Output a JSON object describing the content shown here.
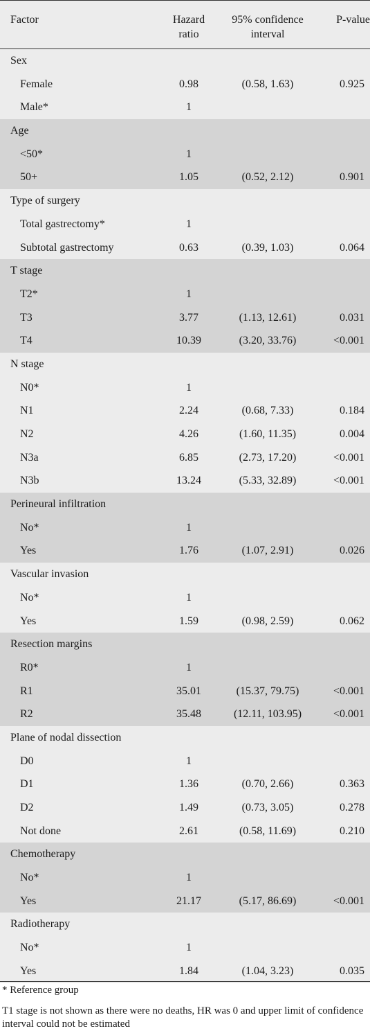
{
  "header": {
    "factor": "Factor",
    "hazard_ratio": "Hazard ratio",
    "ci": "95% confidence interval",
    "p_value": "P-value"
  },
  "groups": [
    {
      "name": "Sex",
      "shade": "white",
      "rows": [
        {
          "label": "Female",
          "hr": "0.98",
          "ci": "(0.58, 1.63)",
          "p": "0.925"
        },
        {
          "label": "Male*",
          "hr": "1",
          "ci": "",
          "p": ""
        }
      ]
    },
    {
      "name": "Age",
      "shade": "grey",
      "rows": [
        {
          "label": "<50*",
          "hr": "1",
          "ci": "",
          "p": ""
        },
        {
          "label": "50+",
          "hr": "1.05",
          "ci": "(0.52, 2.12)",
          "p": "0.901"
        }
      ]
    },
    {
      "name": "Type of surgery",
      "shade": "white",
      "rows": [
        {
          "label": "Total gastrectomy*",
          "hr": "1",
          "ci": "",
          "p": ""
        },
        {
          "label": "Subtotal gastrectomy",
          "hr": "0.63",
          "ci": "(0.39, 1.03)",
          "p": "0.064"
        }
      ]
    },
    {
      "name": "T stage",
      "shade": "grey",
      "rows": [
        {
          "label": "T2*",
          "hr": "1",
          "ci": "",
          "p": ""
        },
        {
          "label": "T3",
          "hr": "3.77",
          "ci": "(1.13, 12.61)",
          "p": "0.031"
        },
        {
          "label": "T4",
          "hr": "10.39",
          "ci": "(3.20, 33.76)",
          "p": "<0.001"
        }
      ]
    },
    {
      "name": "N stage",
      "shade": "white",
      "rows": [
        {
          "label": "N0*",
          "hr": "1",
          "ci": "",
          "p": ""
        },
        {
          "label": "N1",
          "hr": "2.24",
          "ci": "(0.68, 7.33)",
          "p": "0.184"
        },
        {
          "label": "N2",
          "hr": "4.26",
          "ci": "(1.60, 11.35)",
          "p": "0.004"
        },
        {
          "label": "N3a",
          "hr": "6.85",
          "ci": "(2.73, 17.20)",
          "p": "<0.001"
        },
        {
          "label": "N3b",
          "hr": "13.24",
          "ci": "(5.33, 32.89)",
          "p": "<0.001"
        }
      ]
    },
    {
      "name": "Perineural infiltration",
      "shade": "grey",
      "rows": [
        {
          "label": "No*",
          "hr": "1",
          "ci": "",
          "p": ""
        },
        {
          "label": "Yes",
          "hr": "1.76",
          "ci": "(1.07, 2.91)",
          "p": "0.026"
        }
      ]
    },
    {
      "name": "Vascular invasion",
      "shade": "white",
      "rows": [
        {
          "label": "No*",
          "hr": "1",
          "ci": "",
          "p": ""
        },
        {
          "label": "Yes",
          "hr": "1.59",
          "ci": "(0.98, 2.59)",
          "p": "0.062"
        }
      ]
    },
    {
      "name": "Resection margins",
      "shade": "grey",
      "rows": [
        {
          "label": "R0*",
          "hr": "1",
          "ci": "",
          "p": ""
        },
        {
          "label": "R1",
          "hr": "35.01",
          "ci": "(15.37, 79.75)",
          "p": "<0.001"
        },
        {
          "label": "R2",
          "hr": "35.48",
          "ci": "(12.11, 103.95)",
          "p": "<0.001"
        }
      ]
    },
    {
      "name": "Plane of nodal dissection",
      "shade": "white",
      "rows": [
        {
          "label": "D0",
          "hr": "1",
          "ci": "",
          "p": ""
        },
        {
          "label": "D1",
          "hr": "1.36",
          "ci": "(0.70, 2.66)",
          "p": "0.363"
        },
        {
          "label": "D2",
          "hr": "1.49",
          "ci": "(0.73, 3.05)",
          "p": "0.278"
        },
        {
          "label": "Not done",
          "hr": "2.61",
          "ci": "(0.58, 11.69)",
          "p": "0.210"
        }
      ]
    },
    {
      "name": "Chemotherapy",
      "shade": "grey",
      "rows": [
        {
          "label": "No*",
          "hr": "1",
          "ci": "",
          "p": ""
        },
        {
          "label": "Yes",
          "hr": "21.17",
          "ci": "(5.17, 86.69)",
          "p": "<0.001"
        }
      ]
    },
    {
      "name": "Radiotherapy",
      "shade": "white",
      "rows": [
        {
          "label": "No*",
          "hr": "1",
          "ci": "",
          "p": ""
        },
        {
          "label": "Yes",
          "hr": "1.84",
          "ci": "(1.04, 3.23)",
          "p": "0.035"
        }
      ]
    }
  ],
  "footnotes": {
    "reference": "* Reference group",
    "t1_note": "T1 stage is not shown as there were no deaths, HR was 0 and upper limit of confidence interval could not be estimated"
  },
  "colors": {
    "light_band": "#ececec",
    "dark_band": "#d4d4d4",
    "rule": "#333333"
  }
}
